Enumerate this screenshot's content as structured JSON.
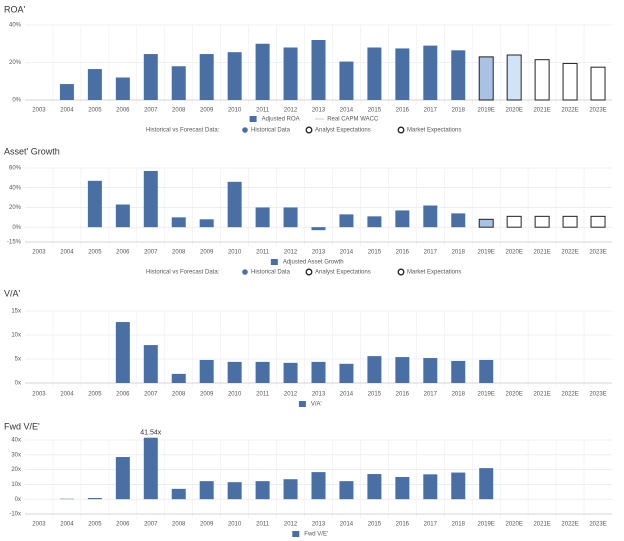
{
  "chart_data": [
    {
      "type": "bar",
      "title": "ROA'",
      "categories": [
        "2003",
        "2004",
        "2005",
        "2006",
        "2007",
        "2008",
        "2009",
        "2010",
        "2011",
        "2012",
        "2013",
        "2014",
        "2015",
        "2016",
        "2017",
        "2018",
        "2019E",
        "2020E",
        "2021E",
        "2022E",
        "2023E"
      ],
      "series": [
        {
          "name": "Adjusted ROA",
          "color": "#4a6fa5",
          "values": [
            null,
            8.5,
            16.5,
            12,
            24.5,
            18,
            24.5,
            25.5,
            30,
            28,
            32,
            20.5,
            28,
            27.5,
            29,
            26.5,
            23,
            24,
            21.5,
            19.5,
            17.5
          ],
          "colors": [
            "#4a6fa5",
            "#4a6fa5",
            "#4a6fa5",
            "#4a6fa5",
            "#4a6fa5",
            "#4a6fa5",
            "#4a6fa5",
            "#4a6fa5",
            "#4a6fa5",
            "#4a6fa5",
            "#4a6fa5",
            "#4a6fa5",
            "#4a6fa5",
            "#4a6fa5",
            "#4a6fa5",
            "#4a6fa5",
            "#a9c1e3",
            "#d3e3f7",
            "#ffffff",
            "#ffffff",
            "#ffffff"
          ],
          "edgecolors": [
            "none",
            "none",
            "none",
            "none",
            "none",
            "none",
            "none",
            "none",
            "none",
            "none",
            "none",
            "none",
            "none",
            "none",
            "none",
            "none",
            "#222222",
            "#222222",
            "#222222",
            "#222222",
            "#222222"
          ]
        },
        {
          "name": "Real CAPM WACC",
          "color": "#cccccc",
          "style": "line",
          "values": [
            null,
            null,
            null,
            null,
            null,
            null,
            null,
            null,
            null,
            null,
            null,
            null,
            null,
            null,
            null,
            null,
            null,
            null,
            null,
            null,
            null
          ]
        }
      ],
      "ylim": [
        0,
        40
      ],
      "yticks": [
        {
          "value": 0,
          "label": "0%"
        },
        {
          "value": 20,
          "label": "20%"
        },
        {
          "value": 40,
          "label": "40%"
        }
      ],
      "grid": true,
      "forecast_legend": {
        "title": "Historical vs Forecast Data:",
        "items": [
          "Historical Data",
          "Analyst Expectations",
          "Market Expectations"
        ]
      }
    },
    {
      "type": "bar",
      "title": "Asset' Growth",
      "categories": [
        "2003",
        "2004",
        "2005",
        "2006",
        "2007",
        "2008",
        "2009",
        "2010",
        "2011",
        "2012",
        "2013",
        "2014",
        "2015",
        "2016",
        "2017",
        "2018",
        "2019E",
        "2020E",
        "2021E",
        "2022E",
        "2023E"
      ],
      "series": [
        {
          "name": "Adjusted Asset Growth",
          "color": "#4a6fa5",
          "values": [
            null,
            null,
            47,
            23,
            57,
            10,
            8,
            46,
            20,
            20,
            -3,
            13,
            11,
            17,
            22,
            14,
            8,
            11,
            11,
            11,
            11
          ],
          "colors": [
            "#4a6fa5",
            "#4a6fa5",
            "#4a6fa5",
            "#4a6fa5",
            "#4a6fa5",
            "#4a6fa5",
            "#4a6fa5",
            "#4a6fa5",
            "#4a6fa5",
            "#4a6fa5",
            "#4a6fa5",
            "#4a6fa5",
            "#4a6fa5",
            "#4a6fa5",
            "#4a6fa5",
            "#4a6fa5",
            "#a9c1e3",
            "#ffffff",
            "#ffffff",
            "#ffffff",
            "#ffffff"
          ],
          "edgecolors": [
            "none",
            "none",
            "none",
            "none",
            "none",
            "none",
            "none",
            "none",
            "none",
            "none",
            "none",
            "none",
            "none",
            "none",
            "none",
            "none",
            "#222222",
            "#222222",
            "#222222",
            "#222222",
            "#222222"
          ]
        }
      ],
      "ylim": [
        -15,
        60
      ],
      "yticks": [
        {
          "value": -15,
          "label": "-15%"
        },
        {
          "value": 0,
          "label": "0%"
        },
        {
          "value": 20,
          "label": "20%"
        },
        {
          "value": 40,
          "label": "40%"
        },
        {
          "value": 60,
          "label": "60%"
        }
      ],
      "grid": true,
      "forecast_legend": {
        "title": "Historical vs Forecast Data:",
        "items": [
          "Historical Data",
          "Analyst Expectations",
          "Market Expectations"
        ]
      }
    },
    {
      "type": "bar",
      "title": "V/A'",
      "categories": [
        "2003",
        "2004",
        "2005",
        "2006",
        "2007",
        "2008",
        "2009",
        "2010",
        "2011",
        "2012",
        "2013",
        "2014",
        "2015",
        "2016",
        "2017",
        "2018",
        "2019E",
        "2020E",
        "2021E",
        "2022E",
        "2023E"
      ],
      "series": [
        {
          "name": "V/A'",
          "color": "#4a6fa5",
          "values": [
            null,
            null,
            null,
            12.7,
            7.9,
            1.9,
            4.8,
            4.4,
            4.4,
            4.2,
            4.4,
            4.0,
            5.6,
            5.4,
            5.2,
            4.6,
            4.8,
            null,
            null,
            null,
            null
          ]
        }
      ],
      "ylim": [
        0,
        15
      ],
      "yticks": [
        {
          "value": 0,
          "label": "0x"
        },
        {
          "value": 5,
          "label": "5x"
        },
        {
          "value": 10,
          "label": "10x"
        },
        {
          "value": 15,
          "label": "15x"
        }
      ],
      "grid": true
    },
    {
      "type": "bar",
      "title": "Fwd V/E'",
      "categories": [
        "2003",
        "2004",
        "2005",
        "2006",
        "2007",
        "2008",
        "2009",
        "2010",
        "2011",
        "2012",
        "2013",
        "2014",
        "2015",
        "2016",
        "2017",
        "2018",
        "2019E",
        "2020E",
        "2021E",
        "2022E",
        "2023E"
      ],
      "series": [
        {
          "name": "Fwd V/E'",
          "color": "#4a6fa5",
          "values": [
            null,
            0.3,
            0.8,
            28.5,
            41.54,
            7,
            12.2,
            11.5,
            12.2,
            13.5,
            18.3,
            12.2,
            17,
            15,
            16.8,
            18,
            21,
            null,
            null,
            null,
            null
          ],
          "value_labels": [
            null,
            null,
            null,
            null,
            "41.54x",
            null,
            null,
            null,
            null,
            null,
            null,
            null,
            null,
            null,
            null,
            null,
            null,
            null,
            null,
            null,
            null
          ]
        }
      ],
      "ylim": [
        -10,
        40
      ],
      "yticks": [
        {
          "value": -10,
          "label": "-10x"
        },
        {
          "value": 0,
          "label": "0x"
        },
        {
          "value": 10,
          "label": "10x"
        },
        {
          "value": 20,
          "label": "20x"
        },
        {
          "value": 30,
          "label": "30x"
        },
        {
          "value": 40,
          "label": "40x"
        }
      ],
      "grid": true
    }
  ]
}
